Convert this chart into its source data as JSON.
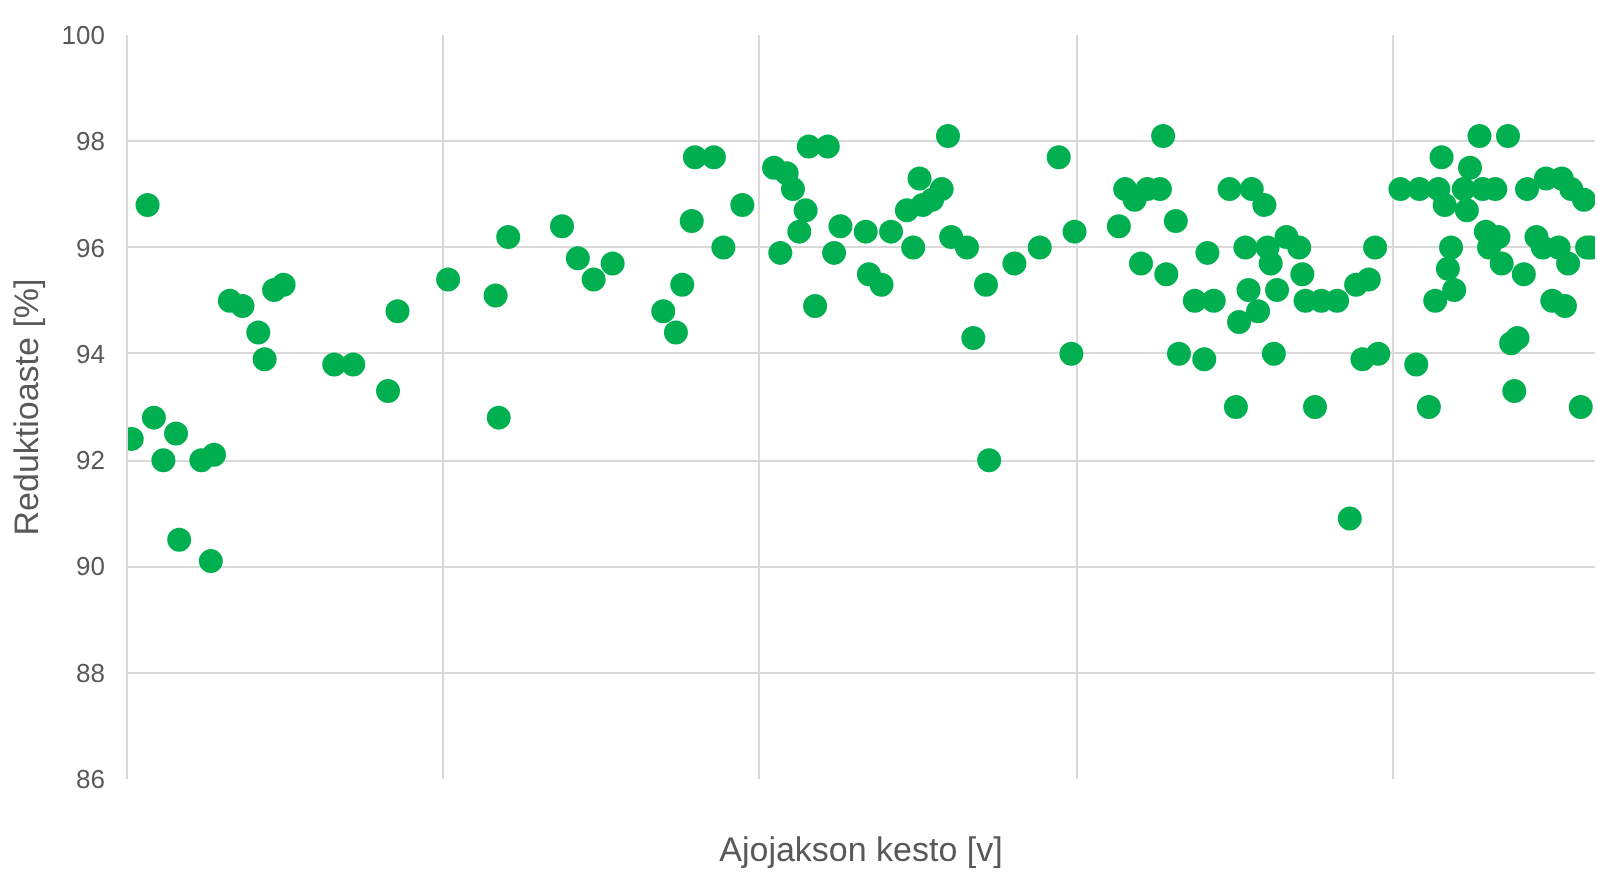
{
  "chart_data": {
    "type": "scatter",
    "xlabel": "Ajojakson kesto [v]",
    "ylabel": "Reduktioaste [%]",
    "marker": "circle",
    "grid": true,
    "categories": [
      null,
      null,
      null,
      null,
      null,
      null,
      null,
      null,
      null,
      null,
      null,
      null,
      null,
      null,
      null,
      null,
      null,
      null,
      null,
      null,
      null,
      null,
      null,
      null,
      null,
      null,
      null,
      null,
      null,
      null,
      null,
      null,
      null,
      null,
      null,
      null,
      null,
      null,
      null,
      null,
      null,
      null,
      null,
      null,
      null,
      null,
      null,
      null,
      null,
      null,
      null,
      null,
      null,
      null,
      null,
      null,
      null,
      null,
      null,
      null,
      null,
      null,
      null,
      null,
      null,
      null,
      null,
      null,
      null,
      null,
      null,
      null,
      null,
      null,
      null,
      null,
      null,
      null,
      null,
      null,
      null,
      null,
      null,
      null,
      null,
      null,
      null,
      null,
      null,
      null,
      null,
      null,
      null,
      null,
      null,
      null,
      null,
      null,
      null,
      null,
      null,
      null,
      null,
      null,
      null,
      null,
      null,
      null,
      null,
      null,
      null,
      null,
      null,
      null,
      null,
      null,
      null,
      null,
      null,
      null,
      null,
      null,
      null,
      null,
      null,
      null,
      null,
      null,
      null,
      null,
      null,
      null,
      null,
      null,
      null,
      null,
      null,
      null,
      null,
      null,
      null,
      null,
      null,
      null,
      null,
      null,
      null,
      null,
      null,
      null,
      null,
      null,
      null,
      null,
      null,
      null,
      null,
      null,
      null,
      null,
      null,
      null,
      null,
      null,
      null,
      null,
      null,
      null,
      null,
      null,
      null,
      null,
      null,
      null,
      null,
      null,
      null,
      null,
      null,
      null,
      null,
      null,
      null,
      null,
      null,
      null,
      null,
      null,
      null,
      null,
      null,
      null,
      null,
      null,
      null,
      null,
      null,
      null,
      null,
      null,
      null,
      null,
      null,
      null,
      null,
      null,
      null,
      null,
      null,
      null,
      null,
      null,
      null,
      null,
      null,
      null,
      null,
      null,
      null,
      null,
      null,
      null,
      null,
      null,
      null,
      null,
      null,
      null,
      null,
      null,
      null,
      null,
      null,
      null,
      null,
      null,
      null,
      null,
      null,
      null,
      null,
      null,
      null,
      null,
      null,
      null,
      null,
      null,
      null,
      null,
      null,
      null,
      null,
      null,
      null,
      null,
      null,
      null,
      null,
      null,
      null,
      null,
      null,
      null,
      null,
      null,
      null,
      null,
      null,
      null,
      null,
      null,
      null,
      null,
      null,
      null,
      null,
      null,
      null,
      null,
      null,
      null,
      null,
      null,
      null,
      null,
      null,
      null,
      null,
      null,
      null,
      null,
      null,
      null,
      null,
      null,
      null,
      null,
      null,
      null,
      null,
      null,
      null,
      null,
      null,
      null,
      null,
      null,
      null,
      null,
      null,
      null,
      null,
      null,
      null,
      null,
      null,
      null,
      null,
      null,
      null,
      null,
      null,
      null,
      null,
      null,
      null,
      null,
      null,
      null,
      null,
      null,
      null,
      null,
      null,
      null,
      null,
      null,
      null,
      null,
      null,
      null,
      null,
      null,
      null,
      null,
      null,
      null,
      null,
      null,
      null,
      null,
      null,
      null,
      null,
      null,
      null,
      null,
      null,
      null,
      null,
      null,
      null,
      null,
      null,
      null,
      null,
      null,
      null,
      null,
      null,
      null,
      null,
      null,
      null,
      null,
      null,
      null,
      null,
      null,
      null,
      null,
      null,
      null,
      null,
      null,
      null,
      null,
      null,
      null,
      null,
      null,
      null,
      null,
      null,
      null,
      null,
      null,
      null,
      null,
      null,
      null,
      null,
      null,
      null,
      null,
      null,
      null,
      null,
      null,
      null,
      null,
      null,
      null,
      null,
      null,
      null,
      null,
      null,
      null,
      null,
      null,
      null,
      null,
      null,
      null,
      null,
      null,
      null,
      null,
      null,
      null,
      null,
      null,
      null,
      null,
      null,
      null,
      null,
      null,
      null,
      null,
      null,
      null,
      null,
      null,
      null,
      null,
      null,
      null,
      null,
      null,
      null,
      null,
      null,
      null,
      null,
      null,
      null,
      null,
      null,
      null,
      null,
      null
    ],
    "ylim": [
      86,
      100
    ],
    "yticks": [
      86,
      88,
      90,
      92,
      94,
      96,
      98,
      100
    ],
    "series": [
      {
        "color": "#00b050",
        "values": [
          null,
          92.4,
          null,
          null,
          null,
          null,
          96.8,
          null,
          92.8,
          null,
          null,
          92.0,
          null,
          null,
          null,
          92.5,
          90.5,
          null,
          null,
          null,
          null,
          null,
          null,
          92.0,
          null,
          null,
          90.1,
          92.1,
          null,
          null,
          null,
          null,
          95.0,
          null,
          null,
          null,
          94.9,
          null,
          null,
          null,
          null,
          94.4,
          null,
          93.9,
          null,
          null,
          95.2,
          null,
          null,
          95.3,
          null,
          null,
          null,
          null,
          null,
          null,
          null,
          null,
          null,
          null,
          null,
          null,
          null,
          null,
          null,
          93.8,
          null,
          null,
          null,
          null,
          null,
          93.8,
          null,
          null,
          null,
          null,
          null,
          null,
          null,
          null,
          null,
          null,
          93.3,
          null,
          null,
          94.8,
          null,
          null,
          null,
          null,
          null,
          null,
          null,
          null,
          null,
          null,
          null,
          null,
          null,
          null,
          null,
          95.4,
          null,
          null,
          null,
          null,
          null,
          null,
          null,
          null,
          null,
          null,
          null,
          null,
          null,
          null,
          95.1,
          92.8,
          null,
          null,
          96.2,
          null,
          null,
          null,
          null,
          null,
          null,
          null,
          null,
          null,
          null,
          null,
          null,
          null,
          null,
          null,
          null,
          96.4,
          null,
          null,
          null,
          null,
          95.8,
          null,
          null,
          null,
          null,
          95.4,
          null,
          null,
          null,
          null,
          null,
          95.7,
          null,
          null,
          null,
          null,
          null,
          null,
          null,
          null,
          null,
          null,
          null,
          null,
          null,
          null,
          null,
          94.8,
          null,
          null,
          null,
          94.4,
          null,
          95.3,
          null,
          null,
          96.5,
          97.7,
          null,
          null,
          null,
          null,
          null,
          97.7,
          null,
          null,
          96.0,
          null,
          null,
          null,
          null,
          null,
          96.8,
          null,
          null,
          null,
          null,
          null,
          null,
          null,
          null,
          null,
          97.5,
          null,
          95.9,
          null,
          97.4,
          null,
          97.1,
          null,
          96.3,
          null,
          96.7,
          97.9,
          null,
          94.9,
          null,
          null,
          null,
          97.9,
          null,
          95.9,
          null,
          96.4,
          null,
          null,
          null,
          null,
          null,
          null,
          null,
          96.3,
          95.5,
          null,
          null,
          null,
          95.3,
          null,
          null,
          96.3,
          null,
          null,
          null,
          null,
          96.7,
          null,
          96.0,
          null,
          97.3,
          96.8,
          null,
          null,
          96.9,
          null,
          null,
          97.1,
          null,
          98.1,
          96.2,
          null,
          null,
          null,
          null,
          96.0,
          null,
          94.3,
          null,
          null,
          null,
          95.3,
          92.0,
          null,
          null,
          null,
          null,
          null,
          null,
          null,
          95.7,
          null,
          null,
          null,
          null,
          null,
          null,
          null,
          96.0,
          null,
          null,
          null,
          null,
          null,
          97.7,
          null,
          null,
          null,
          94.0,
          96.3,
          null,
          null,
          null,
          null,
          null,
          null,
          null,
          null,
          null,
          null,
          null,
          null,
          null,
          96.4,
          null,
          97.1,
          null,
          null,
          96.9,
          null,
          95.7,
          null,
          97.1,
          null,
          null,
          null,
          97.1,
          98.1,
          95.5,
          null,
          null,
          96.5,
          94.0,
          null,
          null,
          null,
          null,
          95.0,
          null,
          null,
          93.9,
          95.9,
          null,
          95.0,
          null,
          null,
          null,
          null,
          97.1,
          null,
          93.0,
          94.6,
          null,
          96.0,
          95.2,
          97.1,
          null,
          94.8,
          null,
          96.8,
          96.0,
          95.7,
          94.0,
          95.2,
          null,
          null,
          96.2,
          null,
          null,
          null,
          96.0,
          95.5,
          95.0,
          null,
          null,
          93.0,
          null,
          95.0,
          null,
          null,
          null,
          null,
          95.0,
          null,
          null,
          null,
          90.9,
          null,
          95.3,
          null,
          93.9,
          null,
          95.4,
          null,
          96.0,
          94.0,
          null,
          null,
          null,
          null,
          null,
          null,
          97.1,
          null,
          null,
          null,
          null,
          93.8,
          97.1,
          null,
          null,
          93.0,
          null,
          95.0,
          97.1,
          97.7,
          96.8,
          95.6,
          96.0,
          95.2,
          null,
          null,
          97.1,
          96.7,
          97.5,
          null,
          null,
          98.1,
          97.1,
          96.3,
          96.0,
          null,
          97.1,
          96.2,
          95.7,
          null,
          98.1,
          94.2,
          93.3,
          94.3,
          null,
          95.5,
          97.1,
          null,
          null,
          96.2,
          null,
          96.0,
          97.3,
          null,
          95.0,
          null,
          96.0,
          97.3,
          94.9,
          95.7,
          97.1,
          null,
          null,
          93.0,
          96.9,
          96.0,
          96.0,
          null
        ]
      }
    ]
  }
}
